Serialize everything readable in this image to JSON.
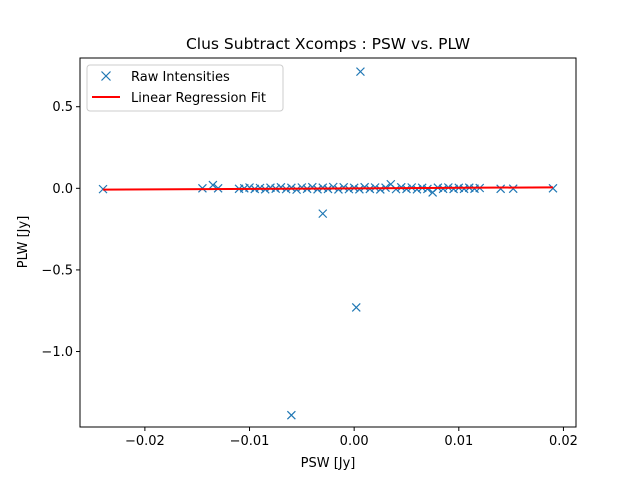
{
  "chart_data": {
    "type": "scatter",
    "title": "Clus Subtract Xcomps : PSW vs. PLW",
    "xlabel": "PSW [Jy]",
    "ylabel": "PLW [Jy]",
    "xlim": [
      -0.0262,
      0.0212
    ],
    "ylim": [
      -1.4625,
      0.7985
    ],
    "xticks": [
      {
        "value": -0.02,
        "label": "−0.02"
      },
      {
        "value": -0.01,
        "label": "−0.01"
      },
      {
        "value": 0.0,
        "label": "0.00"
      },
      {
        "value": 0.01,
        "label": "0.01"
      },
      {
        "value": 0.02,
        "label": "0.02"
      }
    ],
    "yticks": [
      {
        "value": 0.5,
        "label": "0.5"
      },
      {
        "value": 0.0,
        "label": "0.0"
      },
      {
        "value": -0.5,
        "label": "−0.5"
      },
      {
        "value": -1.0,
        "label": "−1.0"
      }
    ],
    "grid": false,
    "legend_position": "top-left",
    "series": [
      {
        "name": "Raw Intensities",
        "kind": "scatter",
        "marker": "x",
        "color": "#1f77b4",
        "points": [
          [
            -0.024,
            -0.005
          ],
          [
            -0.0145,
            0.0
          ],
          [
            -0.0135,
            0.02
          ],
          [
            -0.013,
            0.0
          ],
          [
            -0.011,
            -0.003
          ],
          [
            -0.0105,
            0.0
          ],
          [
            -0.01,
            0.005
          ],
          [
            -0.0095,
            -0.004
          ],
          [
            -0.009,
            0.002
          ],
          [
            -0.0085,
            -0.006
          ],
          [
            -0.008,
            0.004
          ],
          [
            -0.0075,
            -0.002
          ],
          [
            -0.007,
            0.006
          ],
          [
            -0.0065,
            -0.005
          ],
          [
            -0.006,
            0.003
          ],
          [
            -0.0055,
            -0.008
          ],
          [
            -0.005,
            0.005
          ],
          [
            -0.0045,
            -0.003
          ],
          [
            -0.004,
            0.007
          ],
          [
            -0.0035,
            -0.006
          ],
          [
            -0.003,
            0.004
          ],
          [
            -0.0025,
            -0.004
          ],
          [
            -0.002,
            0.008
          ],
          [
            -0.0015,
            -0.007
          ],
          [
            -0.001,
            0.006
          ],
          [
            -0.0005,
            -0.005
          ],
          [
            0.0,
            0.003
          ],
          [
            0.0005,
            -0.006
          ],
          [
            0.001,
            0.007
          ],
          [
            0.0015,
            -0.004
          ],
          [
            0.002,
            0.005
          ],
          [
            0.0025,
            -0.007
          ],
          [
            0.003,
            0.004
          ],
          [
            0.0035,
            0.025
          ],
          [
            0.004,
            -0.005
          ],
          [
            0.0045,
            0.006
          ],
          [
            0.005,
            -0.004
          ],
          [
            0.0055,
            0.005
          ],
          [
            0.006,
            -0.006
          ],
          [
            0.0065,
            0.003
          ],
          [
            0.007,
            -0.004
          ],
          [
            0.0075,
            -0.025
          ],
          [
            0.008,
            0.004
          ],
          [
            0.0085,
            -0.003
          ],
          [
            0.009,
            0.005
          ],
          [
            0.0095,
            -0.004
          ],
          [
            0.01,
            0.003
          ],
          [
            0.0105,
            -0.003
          ],
          [
            0.011,
            0.004
          ],
          [
            0.0115,
            -0.002
          ],
          [
            0.012,
            0.002
          ],
          [
            0.014,
            -0.003
          ],
          [
            0.0152,
            -0.002
          ],
          [
            0.019,
            0.0
          ],
          [
            -0.003,
            -0.155
          ],
          [
            0.0006,
            0.715
          ],
          [
            0.0002,
            -0.73
          ],
          [
            -0.006,
            -1.39
          ]
        ]
      },
      {
        "name": "Linear Regression Fit",
        "kind": "line",
        "color": "#ff0000",
        "points": [
          [
            -0.024,
            -0.008
          ],
          [
            0.019,
            0.006
          ]
        ]
      }
    ]
  }
}
